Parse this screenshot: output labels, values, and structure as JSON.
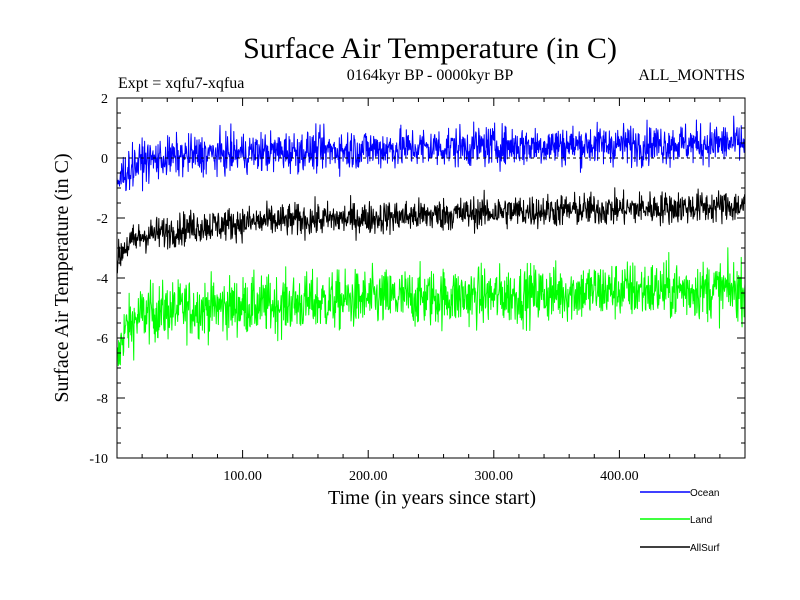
{
  "chart_data": {
    "type": "line",
    "title": "Surface Air Temperature (in C)",
    "subtitle": "0164kyr BP - 0000kyr BP",
    "expt_label": "Expt = xqfu7-xqfua",
    "months_label": "ALL_MONTHS",
    "xlabel": "Time (in years since start)",
    "ylabel": "Surface Air Temperature (in C)",
    "xlim": [
      0,
      500
    ],
    "ylim": [
      -10,
      2
    ],
    "x_ticks": [
      {
        "value": 100,
        "label": "100.00"
      },
      {
        "value": 200,
        "label": "200.00"
      },
      {
        "value": 300,
        "label": "300.00"
      },
      {
        "value": 400,
        "label": "400.00"
      }
    ],
    "y_ticks": [
      {
        "value": 2,
        "label": "2"
      },
      {
        "value": 0,
        "label": "0"
      },
      {
        "value": -2,
        "label": "-2"
      },
      {
        "value": -4,
        "label": "-4"
      },
      {
        "value": -6,
        "label": "-6"
      },
      {
        "value": -8,
        "label": "-8"
      },
      {
        "value": -10,
        "label": "-10"
      }
    ],
    "zero_reference_line": 0,
    "series": [
      {
        "name": "Ocean",
        "color": "#0000ff",
        "noise_amplitude": 0.55,
        "trend": [
          [
            0,
            -0.9
          ],
          [
            5,
            -0.5
          ],
          [
            20,
            -0.1
          ],
          [
            60,
            0.1
          ],
          [
            120,
            0.2
          ],
          [
            200,
            0.3
          ],
          [
            250,
            0.35
          ],
          [
            300,
            0.4
          ],
          [
            400,
            0.45
          ],
          [
            500,
            0.5
          ]
        ]
      },
      {
        "name": "Land",
        "color": "#00ff00",
        "noise_amplitude": 0.8,
        "trend": [
          [
            0,
            -7.0
          ],
          [
            5,
            -5.8
          ],
          [
            20,
            -5.2
          ],
          [
            60,
            -5.0
          ],
          [
            120,
            -4.9
          ],
          [
            200,
            -4.7
          ],
          [
            300,
            -4.6
          ],
          [
            400,
            -4.4
          ],
          [
            500,
            -4.4
          ]
        ]
      },
      {
        "name": "AllSurf",
        "color": "#000000",
        "noise_amplitude": 0.45,
        "trend": [
          [
            0,
            -3.5
          ],
          [
            5,
            -3.0
          ],
          [
            20,
            -2.6
          ],
          [
            60,
            -2.3
          ],
          [
            120,
            -2.1
          ],
          [
            200,
            -2.0
          ],
          [
            250,
            -1.9
          ],
          [
            300,
            -1.8
          ],
          [
            400,
            -1.7
          ],
          [
            500,
            -1.6
          ]
        ]
      }
    ],
    "legend_position": "bottom-right"
  }
}
